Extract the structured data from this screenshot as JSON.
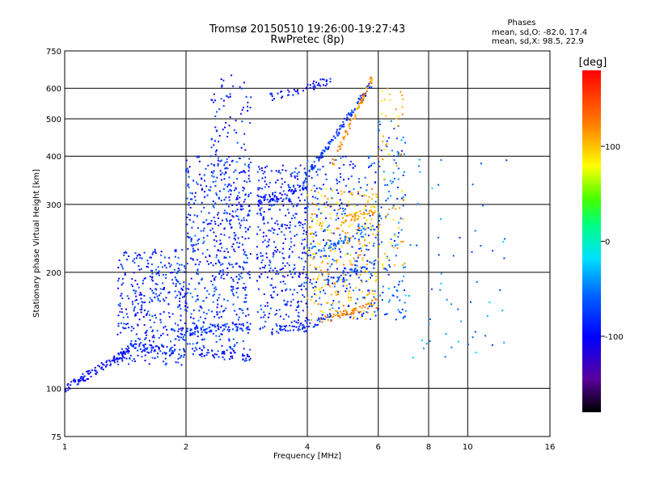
{
  "chart_data": {
    "type": "scatter",
    "title": "Tromsø 20150510 19:26:00-19:27:43",
    "subtitle": "RwPretec (8p)",
    "xlabel": "Frequency [MHz]",
    "ylabel": "Stationary phase Virtual Height [km]",
    "xscale": "log",
    "yscale": "log",
    "xlim": [
      1,
      16
    ],
    "ylim": [
      75,
      750
    ],
    "xticks": [
      1,
      2,
      4,
      6,
      8,
      10,
      16
    ],
    "xtick_labels": [
      "1",
      "2",
      "4",
      "6",
      "8",
      "10",
      "16"
    ],
    "yticks": [
      75,
      100,
      200,
      300,
      400,
      500,
      600,
      750
    ],
    "ytick_labels": [
      "75",
      "100",
      "200",
      "300",
      "400",
      "500",
      "600",
      "750"
    ],
    "grid": true,
    "stats": {
      "heading": "Phases",
      "line_o": "mean, sd,O: -82.0, 17.4",
      "line_x": "mean, sd,X:  98.5, 22.9"
    },
    "colorbar": {
      "label": "[deg]",
      "min": -180,
      "max": 180,
      "ticks": [
        100,
        0,
        -100
      ],
      "tick_labels": [
        "100",
        "0",
        "-100"
      ],
      "placement": "right"
    },
    "clusters": [
      {
        "name": "O",
        "phase_mean": -82.0,
        "phase_sd": 17.4
      },
      {
        "name": "X",
        "phase_mean": 98.5,
        "phase_sd": 22.9
      }
    ],
    "traces": [
      {
        "f0": 1.0,
        "f1": 1.45,
        "h0": 100,
        "h1": 125,
        "phase": -100,
        "n": 120
      },
      {
        "f0": 1.45,
        "f1": 2.9,
        "h0": 128,
        "h1": 120,
        "phase": -88,
        "n": 110
      },
      {
        "f0": 1.9,
        "f1": 2.9,
        "h0": 140,
        "h1": 145,
        "phase": -80,
        "n": 60
      },
      {
        "f0": 3.0,
        "f1": 4.0,
        "h0": 305,
        "h1": 335,
        "phase": -90,
        "n": 60
      },
      {
        "f0": 3.9,
        "f1": 5.8,
        "h0": 345,
        "h1": 620,
        "phase": -75,
        "n": 120
      },
      {
        "f0": 4.0,
        "f1": 5.9,
        "h0": 225,
        "h1": 260,
        "phase": -60,
        "n": 60
      },
      {
        "f0": 3.2,
        "f1": 4.5,
        "h0": 140,
        "h1": 150,
        "phase": -85,
        "n": 50
      },
      {
        "f0": 4.3,
        "f1": 5.8,
        "h0": 150,
        "h1": 165,
        "phase": 120,
        "n": 50
      },
      {
        "f0": 4.6,
        "f1": 5.8,
        "h0": 380,
        "h1": 640,
        "phase": 115,
        "n": 70
      },
      {
        "f0": 3.2,
        "f1": 4.6,
        "h0": 565,
        "h1": 630,
        "phase": -95,
        "n": 50
      },
      {
        "f0": 4.5,
        "f1": 5.9,
        "h0": 190,
        "h1": 210,
        "phase": -70,
        "n": 40
      },
      {
        "f0": 4.8,
        "f1": 5.9,
        "h0": 270,
        "h1": 290,
        "phase": 110,
        "n": 40
      }
    ],
    "regions": [
      {
        "f0": 1.35,
        "f1": 2.0,
        "h0": 115,
        "h1": 230,
        "phase": -85,
        "n": 380
      },
      {
        "f0": 2.0,
        "f1": 2.9,
        "h0": 125,
        "h1": 400,
        "phase": -80,
        "n": 500
      },
      {
        "f0": 2.3,
        "f1": 2.9,
        "h0": 200,
        "h1": 650,
        "phase": -90,
        "n": 150
      },
      {
        "f0": 3.0,
        "f1": 4.0,
        "h0": 140,
        "h1": 380,
        "phase": -88,
        "n": 380
      },
      {
        "f0": 4.0,
        "f1": 6.0,
        "h0": 150,
        "h1": 330,
        "phase": 105,
        "n": 280
      },
      {
        "f0": 4.0,
        "f1": 6.0,
        "h0": 150,
        "h1": 400,
        "phase": -75,
        "n": 260
      },
      {
        "f0": 6.0,
        "f1": 7.0,
        "h0": 150,
        "h1": 500,
        "phase": -60,
        "n": 120
      },
      {
        "f0": 6.0,
        "f1": 7.0,
        "h0": 200,
        "h1": 600,
        "phase": 100,
        "n": 60
      },
      {
        "f0": 7.0,
        "f1": 12.5,
        "h0": 120,
        "h1": 400,
        "phase": -50,
        "n": 60
      }
    ]
  }
}
